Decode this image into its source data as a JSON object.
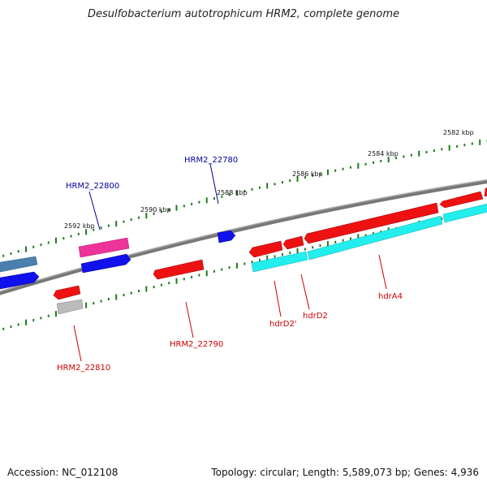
{
  "title": "Desulfobacterium autotrophicum HRM2, complete genome",
  "accession": "Accession: NC_012108",
  "summary": "Topology: circular; Length: 5,589,073 bp; Genes: 4,936",
  "ruler_labels": [
    "2582 kbp",
    "2584 kbp",
    "2586 kbp",
    "2588 kbp",
    "2590 kbp",
    "2592 kbp"
  ],
  "gene_labels": {
    "hrm2_22780": "HRM2_22780",
    "hrm2_22800": "HRM2_22800",
    "hrm2_22790": "HRM2_22790",
    "hrm2_22810": "HRM2_22810",
    "hdrd2_prime": "hdrD2'",
    "hdrd2": "hdrD2",
    "hdra4": "hdrA4"
  },
  "colors": {
    "backbone": "#888888",
    "ticks": "#1f7a1f",
    "forward_gene": "#ee1111",
    "reverse_gene": "#22eeee",
    "blue_gene": "#1111ee",
    "steel_gene": "#4a7fae",
    "pink_gene": "#ee3399",
    "grey_gene": "#bbbbbb",
    "label_blue": "#000099",
    "label_red": "#cc0000"
  }
}
